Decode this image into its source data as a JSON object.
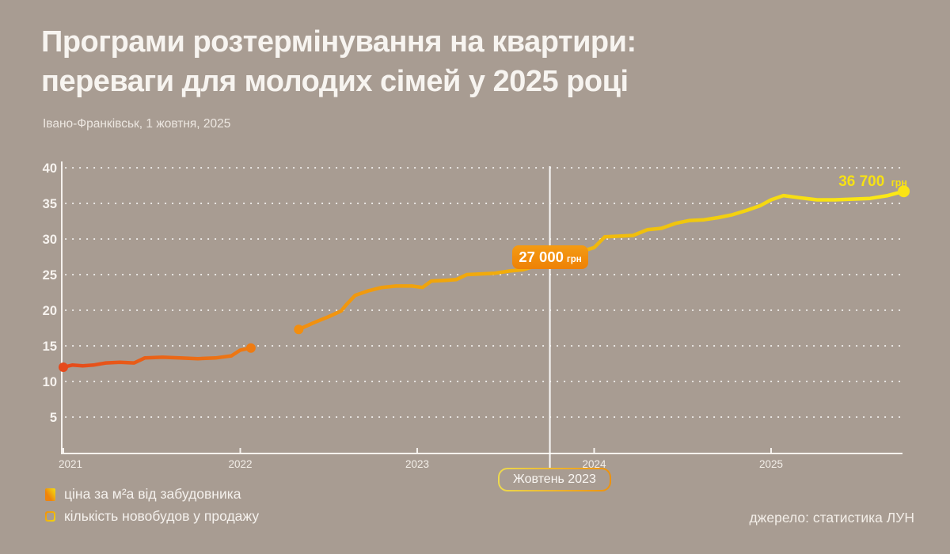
{
  "colors": {
    "background": "#A89C92",
    "text_primary": "#F7F4F0",
    "axis": "#F6F2EE",
    "grid_dots": "#FFFFFF",
    "marker_line": "#FFFFFF",
    "price_badge_bg": "#F08E0C",
    "price_badge_text": "#FFFFFF",
    "end_label_text": "#F6E114",
    "date_badge_border": [
      "#EDDA4F",
      "#EE920C"
    ],
    "line_start": "#E5491B",
    "line_end": "#FCEA16"
  },
  "header": {
    "title_line1": "Програми розтермінування на квартири:",
    "title_line2": "переваги для молодих сімей у 2025 році",
    "subtitle": "Івано-Франківськ, 1 жовтня, 2025"
  },
  "legend": {
    "items": [
      {
        "label": "ціна за м²а від забудовника",
        "swatch": "filled-gradient-square"
      },
      {
        "label": "кількість новобудов у продажу",
        "swatch": "outlined-gradient-square"
      }
    ]
  },
  "source": "джерело: статистика ЛУН",
  "chart_data": {
    "type": "line",
    "title": "",
    "xlabel": "",
    "ylabel": "",
    "x_ticks": [
      2021,
      2022,
      2023,
      2024,
      2025
    ],
    "y_ticks": [
      5,
      10,
      15,
      20,
      25,
      30,
      35,
      40
    ],
    "xlim": [
      2021,
      2025.78
    ],
    "ylim": [
      0,
      41
    ],
    "grid": "dotted horizontal",
    "legend_position": "bottom-left",
    "y_values_are_thousand_uah": true,
    "series": [
      {
        "name": "ціна за м²а від забудовника",
        "unit": "грн",
        "segments": [
          [
            [
              2021.0,
              12.0
            ],
            [
              2021.05,
              12.3
            ],
            [
              2021.11,
              12.2
            ],
            [
              2021.17,
              12.3
            ],
            [
              2021.24,
              12.6
            ],
            [
              2021.32,
              12.7
            ],
            [
              2021.4,
              12.6
            ],
            [
              2021.46,
              13.3
            ],
            [
              2021.56,
              13.4
            ],
            [
              2021.66,
              13.3
            ],
            [
              2021.76,
              13.2
            ],
            [
              2021.86,
              13.3
            ],
            [
              2021.95,
              13.6
            ],
            [
              2022.0,
              14.4
            ],
            [
              2022.06,
              14.7
            ]
          ],
          [
            [
              2022.33,
              17.3
            ],
            [
              2022.42,
              18.3
            ],
            [
              2022.5,
              19.1
            ],
            [
              2022.57,
              19.9
            ],
            [
              2022.6,
              20.8
            ],
            [
              2022.65,
              22.1
            ],
            [
              2022.72,
              22.7
            ],
            [
              2022.8,
              23.2
            ],
            [
              2022.88,
              23.4
            ],
            [
              2022.97,
              23.4
            ],
            [
              2023.03,
              23.2
            ],
            [
              2023.08,
              24.1
            ],
            [
              2023.16,
              24.2
            ],
            [
              2023.22,
              24.3
            ],
            [
              2023.28,
              25.0
            ],
            [
              2023.36,
              25.1
            ],
            [
              2023.44,
              25.2
            ],
            [
              2023.52,
              25.5
            ],
            [
              2023.6,
              25.7
            ],
            [
              2023.68,
              26.3
            ],
            [
              2023.75,
              27.0
            ],
            [
              2023.83,
              27.5
            ],
            [
              2023.92,
              28.2
            ],
            [
              2024.0,
              28.8
            ],
            [
              2024.06,
              30.3
            ],
            [
              2024.14,
              30.4
            ],
            [
              2024.22,
              30.5
            ],
            [
              2024.3,
              31.3
            ],
            [
              2024.38,
              31.5
            ],
            [
              2024.46,
              32.2
            ],
            [
              2024.54,
              32.6
            ],
            [
              2024.62,
              32.7
            ],
            [
              2024.7,
              33.0
            ],
            [
              2024.78,
              33.4
            ],
            [
              2024.86,
              34.0
            ],
            [
              2024.94,
              34.7
            ],
            [
              2025.0,
              35.5
            ],
            [
              2025.07,
              36.1
            ],
            [
              2025.16,
              35.8
            ],
            [
              2025.26,
              35.5
            ],
            [
              2025.36,
              35.5
            ],
            [
              2025.46,
              35.6
            ],
            [
              2025.56,
              35.7
            ],
            [
              2025.66,
              36.1
            ],
            [
              2025.75,
              36.7
            ]
          ]
        ],
        "dots": [
          [
            2021.0,
            12.0,
            "#E5491B",
            6
          ],
          [
            2022.06,
            14.7,
            "#EE7B12",
            6
          ],
          [
            2022.33,
            17.3,
            "#F28E0F",
            6
          ],
          [
            2025.75,
            36.7,
            "#FAE414",
            7.5
          ]
        ]
      }
    ],
    "line_gradient": [
      [
        0,
        "#E5491B"
      ],
      [
        0.225,
        "#EE7B12"
      ],
      [
        0.28,
        "#F28E0F"
      ],
      [
        0.42,
        "#F0A30C"
      ],
      [
        0.58,
        "#F2B10B"
      ],
      [
        0.735,
        "#F0C60D"
      ],
      [
        0.865,
        "#F7DE12"
      ],
      [
        1,
        "#FCEA16"
      ]
    ],
    "marker": {
      "x": 2023.75,
      "date_label": "Жовтень 2023",
      "value": "27 000",
      "unit": "грн",
      "numeric_value": 27.0
    },
    "end_label": {
      "x": 2025.75,
      "value": "36 700",
      "unit": "грн",
      "numeric_value": 36.7
    }
  }
}
